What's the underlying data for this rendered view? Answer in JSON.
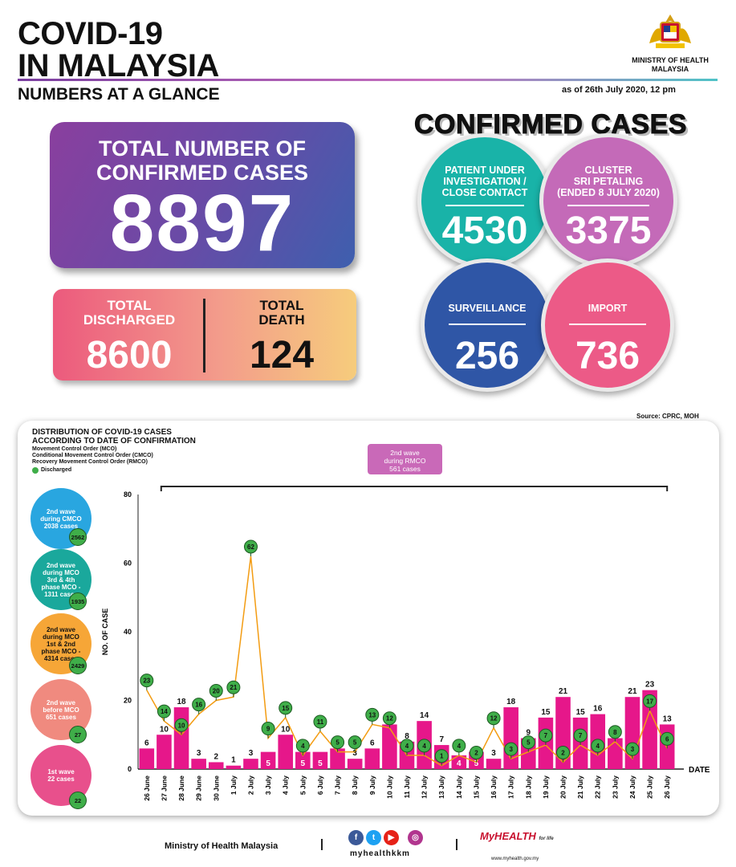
{
  "header": {
    "title_line1": "COVID-19",
    "title_line2": "IN MALAYSIA",
    "subtitle": "NUMBERS AT A GLANCE",
    "ministry": "MINISTRY OF HEALTH\nMALAYSIA",
    "as_of": "as of 26th July 2020, 12 pm"
  },
  "total": {
    "label": "TOTAL NUMBER OF\nCONFIRMED CASES",
    "value": "8897"
  },
  "discharged": {
    "label": "TOTAL\nDISCHARGED",
    "value": "8600"
  },
  "death": {
    "label": "TOTAL\nDEATH",
    "value": "124"
  },
  "confirmed": {
    "title": "CONFIRMED CASES",
    "bubbles": [
      {
        "label": "PATIENT UNDER\nINVESTIGATION /\nCLOSE CONTACT",
        "value": "4530",
        "color": "#19b3a8"
      },
      {
        "label": "CLUSTER\nSRI PETALING\n(ENDED 8 JULY 2020)",
        "value": "3375",
        "color": "#c46ab8"
      },
      {
        "label": "SURVEILLANCE",
        "value": "256",
        "color": "#2f56a6"
      },
      {
        "label": "IMPORT",
        "value": "736",
        "color": "#ec5a87"
      }
    ]
  },
  "source": "Source: CPRC, MOH",
  "chart_section": {
    "title": "DISTRIBUTION OF COVID-19 CASES\nACCORDING TO DATE OF CONFIRMATION",
    "legend": [
      "Movement Control Order (MCO)",
      "Conditional Movement Control Order (CMCO)",
      "Recovery Movement Control Order (RMCO)",
      "Discharged"
    ],
    "rmco_box": "2nd wave\nduring RMCO\n561 cases",
    "side": [
      {
        "label": "2nd wave\nduring CMCO\n2038 cases",
        "discharged": "2562",
        "color": "#29a6e0"
      },
      {
        "label": "2nd wave\nduring MCO\n3rd & 4th\nphase MCO -\n1311 cases",
        "discharged": "1935",
        "color": "#1aa89c"
      },
      {
        "label": "2nd wave\nduring MCO\n1st & 2nd\nphase MCO -\n4314 cases",
        "discharged": "2429",
        "color": "#f6a637"
      },
      {
        "label": "2nd wave\nbefore MCO\n651 cases",
        "discharged": "27",
        "color": "#f08a7f"
      },
      {
        "label": "1st wave\n22 cases",
        "discharged": "22",
        "color": "#e8508c"
      }
    ]
  },
  "chart_data": {
    "type": "bar",
    "ylabel": "NO. OF CASE",
    "xlabel": "DATE",
    "ylim": [
      0,
      80
    ],
    "yticks": [
      0,
      20,
      40,
      60,
      80
    ],
    "categories": [
      "26 June",
      "27 June",
      "28 June",
      "29 June",
      "30 June",
      "1 July",
      "2 July",
      "3 July",
      "4 July",
      "5 July",
      "6 July",
      "7 July",
      "8 July",
      "9 July",
      "10 July",
      "11 July",
      "12 July",
      "13 July",
      "14 July",
      "15 July",
      "16 July",
      "17 July",
      "18 July",
      "19 July",
      "20 July",
      "21 July",
      "22 July",
      "23 July",
      "24 July",
      "25 July",
      "26 July"
    ],
    "series": [
      {
        "values": [
          6,
          10,
          18,
          3,
          2,
          1,
          3,
          5,
          10,
          5,
          5,
          6,
          3,
          6,
          13,
          8,
          14,
          7,
          4,
          5,
          3,
          18,
          9,
          15,
          21,
          15,
          16,
          9,
          21,
          23,
          13
        ],
        "color": "#e6178a"
      },
      {
        "name": "Discharged",
        "values": [
          23,
          14,
          10,
          16,
          20,
          21,
          62,
          9,
          15,
          4,
          11,
          5,
          5,
          13,
          12,
          4,
          4,
          1,
          4,
          2,
          12,
          3,
          5,
          7,
          2,
          7,
          4,
          8,
          3,
          17,
          6
        ],
        "color": "#f39c12"
      }
    ]
  },
  "footer": {
    "ministry": "Ministry of Health Malaysia",
    "handle": "myhealthkkm",
    "logo": "MyHEALTH",
    "logo_tag": "for life",
    "url": "www.myhealth.gov.my"
  }
}
